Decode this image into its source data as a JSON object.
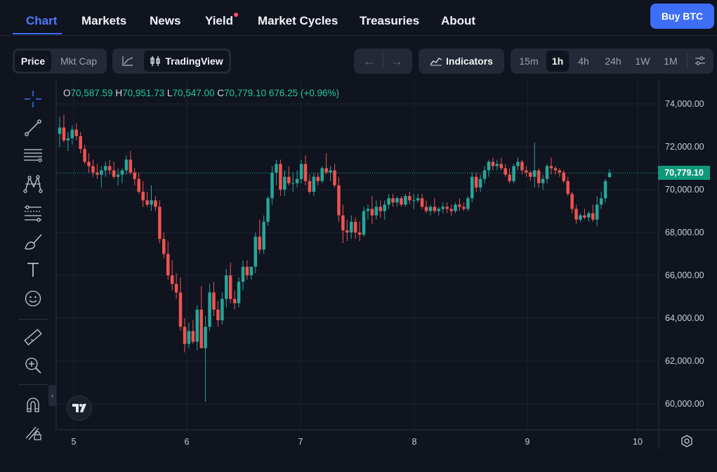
{
  "nav": {
    "items": [
      {
        "label": "Chart",
        "active": true
      },
      {
        "label": "Markets"
      },
      {
        "label": "News"
      },
      {
        "label": "Yield",
        "has_dot": true
      },
      {
        "label": "Market Cycles"
      },
      {
        "label": "Treasuries"
      },
      {
        "label": "About"
      }
    ],
    "buy_label": "Buy BTC"
  },
  "toolbar": {
    "mode_options": [
      "Price",
      "Mkt Cap"
    ],
    "selected_mode": "Price",
    "chart_engine_label": "TradingView",
    "indicators_label": "Indicators",
    "intervals": [
      "15m",
      "1h",
      "4h",
      "24h",
      "1W",
      "1M"
    ],
    "selected_interval": "1h"
  },
  "left_tools": [
    "crosshair-icon",
    "trend-line-icon",
    "horizontal-lines-icon",
    "pattern-icon",
    "fib-icon",
    "brush-icon",
    "text-icon",
    "emoji-icon",
    "ruler-icon",
    "zoom-in-icon",
    "magnet-icon",
    "lock-pencil-icon"
  ],
  "legend": {
    "o_label": "O",
    "o": "70,587.59",
    "h_label": "H",
    "h": "70,951.73",
    "l_label": "L",
    "l": "70,547.00",
    "c_label": "C",
    "c": "70,779.10",
    "change": "676.25 (+0.96%)"
  },
  "last_price": "70,779.10",
  "colors": {
    "up": "#26a69a",
    "down": "#ef5350",
    "accent": "#3f6ef6",
    "price_tag": "#0e9a7a"
  },
  "chart_data": {
    "type": "candlestick",
    "y_ticks": [
      "74,000.00",
      "72,000.00",
      "70,000.00",
      "68,000.00",
      "66,000.00",
      "64,000.00",
      "62,000.00",
      "60,000.00"
    ],
    "y_tick_values": [
      74000,
      72000,
      70000,
      68000,
      66000,
      64000,
      62000,
      60000
    ],
    "x_ticks": [
      "5",
      "6",
      "7",
      "8",
      "9",
      "10"
    ],
    "last_close": 70779.1,
    "candles": [
      [
        72600,
        73400,
        72000,
        72900
      ],
      [
        72900,
        73500,
        72200,
        72300
      ],
      [
        72300,
        72700,
        71800,
        72400
      ],
      [
        72400,
        73000,
        72100,
        72800
      ],
      [
        72800,
        73100,
        72300,
        72500
      ],
      [
        72500,
        72700,
        71700,
        71900
      ],
      [
        71900,
        72100,
        71200,
        71300
      ],
      [
        71300,
        71700,
        70800,
        71100
      ],
      [
        71100,
        71400,
        70600,
        70800
      ],
      [
        70800,
        71200,
        70500,
        70700
      ],
      [
        70700,
        71100,
        70100,
        70900
      ],
      [
        70900,
        71300,
        70600,
        71100
      ],
      [
        71100,
        71400,
        70700,
        70900
      ],
      [
        70900,
        71300,
        70500,
        70600
      ],
      [
        70600,
        71000,
        70200,
        70700
      ],
      [
        70700,
        71000,
        70300,
        70900
      ],
      [
        70900,
        71600,
        70700,
        71400
      ],
      [
        71400,
        71800,
        70700,
        70800
      ],
      [
        70800,
        71000,
        70200,
        70500
      ],
      [
        70500,
        70800,
        69800,
        69900
      ],
      [
        69900,
        70400,
        69200,
        69500
      ],
      [
        69500,
        69900,
        69200,
        69300
      ],
      [
        69300,
        70200,
        69000,
        69500
      ],
      [
        69500,
        69700,
        69000,
        69200
      ],
      [
        69200,
        69500,
        67500,
        67700
      ],
      [
        67700,
        68000,
        66800,
        67000
      ],
      [
        67000,
        67600,
        65800,
        66000
      ],
      [
        66000,
        66700,
        65300,
        65600
      ],
      [
        65600,
        66100,
        64900,
        65200
      ],
      [
        65200,
        65900,
        63400,
        63600
      ],
      [
        63600,
        64000,
        62400,
        62800
      ],
      [
        62800,
        63800,
        62600,
        63400
      ],
      [
        63400,
        63900,
        62800,
        62900
      ],
      [
        62900,
        64600,
        62500,
        64400
      ],
      [
        64400,
        65500,
        62600,
        62600
      ],
      [
        62600,
        64100,
        60100,
        63600
      ],
      [
        63600,
        65600,
        63400,
        65200
      ],
      [
        65200,
        65700,
        64100,
        64400
      ],
      [
        64400,
        64800,
        63600,
        63900
      ],
      [
        63900,
        65200,
        63700,
        64900
      ],
      [
        64900,
        66300,
        64500,
        66000
      ],
      [
        66000,
        66600,
        64700,
        64900
      ],
      [
        64900,
        65300,
        64400,
        64700
      ],
      [
        64700,
        65900,
        64500,
        65700
      ],
      [
        65700,
        66700,
        65300,
        66400
      ],
      [
        66400,
        66700,
        65800,
        66000
      ],
      [
        66000,
        66300,
        65800,
        66400
      ],
      [
        66400,
        68000,
        66100,
        67800
      ],
      [
        67800,
        68600,
        67000,
        67200
      ],
      [
        67200,
        68800,
        67000,
        68500
      ],
      [
        68500,
        69700,
        68300,
        69600
      ],
      [
        69600,
        71100,
        69300,
        70800
      ],
      [
        70800,
        71400,
        70200,
        71200
      ],
      [
        71200,
        71400,
        69700,
        70000
      ],
      [
        70000,
        70900,
        69700,
        70600
      ],
      [
        70600,
        71100,
        70200,
        70300
      ],
      [
        70300,
        70800,
        69900,
        70300
      ],
      [
        70300,
        70900,
        70100,
        70500
      ],
      [
        70500,
        71400,
        70300,
        71200
      ],
      [
        71200,
        71600,
        70200,
        70400
      ],
      [
        70400,
        70700,
        69800,
        69900
      ],
      [
        69900,
        70800,
        69700,
        70600
      ],
      [
        70600,
        70800,
        70200,
        70400
      ],
      [
        70400,
        71100,
        70300,
        71000
      ],
      [
        71000,
        71700,
        70700,
        70800
      ],
      [
        70800,
        71100,
        70400,
        70900
      ],
      [
        70900,
        71200,
        70100,
        70200
      ],
      [
        70200,
        70600,
        68500,
        68800
      ],
      [
        68800,
        69300,
        67500,
        68100
      ],
      [
        68100,
        68600,
        67600,
        68000
      ],
      [
        68000,
        68800,
        67700,
        68500
      ],
      [
        68500,
        68700,
        67700,
        68000
      ],
      [
        68000,
        68500,
        67600,
        67900
      ],
      [
        67900,
        69200,
        67800,
        69000
      ],
      [
        69000,
        69300,
        68600,
        69100
      ],
      [
        69100,
        69700,
        68400,
        68800
      ],
      [
        68800,
        69500,
        68600,
        69200
      ],
      [
        69200,
        69500,
        68700,
        69000
      ],
      [
        69000,
        69500,
        68600,
        69300
      ],
      [
        69300,
        69800,
        69100,
        69600
      ],
      [
        69600,
        69800,
        69200,
        69400
      ],
      [
        69400,
        69700,
        69200,
        69600
      ],
      [
        69600,
        69700,
        69200,
        69300
      ],
      [
        69300,
        69800,
        69200,
        69700
      ],
      [
        69700,
        69900,
        69300,
        69500
      ],
      [
        69500,
        69800,
        69100,
        69500
      ],
      [
        69500,
        69800,
        69400,
        69600
      ],
      [
        69600,
        69800,
        69100,
        69200
      ],
      [
        69200,
        69500,
        68900,
        69000
      ],
      [
        69000,
        69300,
        68800,
        69200
      ],
      [
        69200,
        69600,
        68900,
        69000
      ],
      [
        69000,
        69200,
        68800,
        69100
      ],
      [
        69100,
        69400,
        68900,
        69200
      ],
      [
        69200,
        69400,
        68900,
        69100
      ],
      [
        69100,
        69300,
        68800,
        69000
      ],
      [
        69000,
        69400,
        68900,
        69300
      ],
      [
        69300,
        69600,
        69000,
        69200
      ],
      [
        69200,
        69400,
        69000,
        69100
      ],
      [
        69100,
        69700,
        69000,
        69600
      ],
      [
        69600,
        70800,
        69400,
        70600
      ],
      [
        70600,
        70800,
        69900,
        70100
      ],
      [
        70100,
        70700,
        69900,
        70500
      ],
      [
        70500,
        71100,
        70300,
        70900
      ],
      [
        70900,
        71400,
        70600,
        71300
      ],
      [
        71300,
        71500,
        70900,
        71100
      ],
      [
        71100,
        71400,
        70900,
        71200
      ],
      [
        71200,
        71500,
        70900,
        71000
      ],
      [
        71000,
        71200,
        70600,
        70700
      ],
      [
        70700,
        71000,
        70300,
        70400
      ],
      [
        70400,
        71200,
        70300,
        71100
      ],
      [
        71100,
        71500,
        70900,
        71300
      ],
      [
        71300,
        71400,
        70700,
        70900
      ],
      [
        70900,
        71100,
        70600,
        70800
      ],
      [
        70800,
        70900,
        70400,
        70600
      ],
      [
        70600,
        72200,
        70100,
        70900
      ],
      [
        70900,
        71000,
        70100,
        70300
      ],
      [
        70300,
        70700,
        70000,
        70500
      ],
      [
        70500,
        71200,
        70300,
        71100
      ],
      [
        71100,
        71500,
        70700,
        71000
      ],
      [
        71000,
        71100,
        70700,
        70900
      ],
      [
        70900,
        71000,
        70600,
        70800
      ],
      [
        70800,
        70900,
        70300,
        70400
      ],
      [
        70400,
        70600,
        69700,
        69800
      ],
      [
        69800,
        69900,
        68900,
        69100
      ],
      [
        69100,
        69300,
        68400,
        68600
      ],
      [
        68600,
        68900,
        68500,
        68800
      ],
      [
        68800,
        69100,
        68600,
        68700
      ],
      [
        68700,
        69000,
        68500,
        68900
      ],
      [
        68900,
        69300,
        68500,
        68600
      ],
      [
        68600,
        69700,
        68300,
        69300
      ],
      [
        69300,
        69900,
        69100,
        69600
      ],
      [
        69600,
        70500,
        69400,
        70400
      ],
      [
        70587.59,
        70951.73,
        70547.0,
        70779.1
      ]
    ]
  }
}
